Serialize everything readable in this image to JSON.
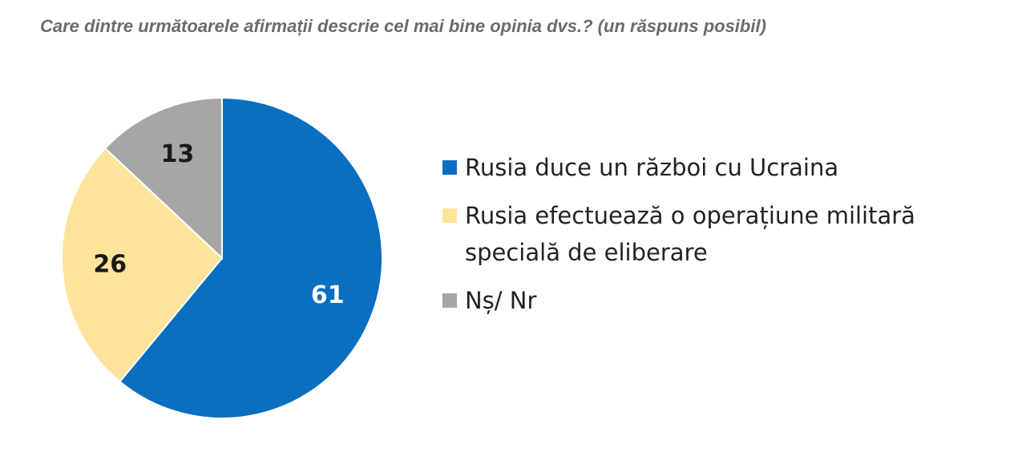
{
  "chart_data": {
    "type": "pie",
    "title": "Care dintre următoarele afirmații descrie cel mai bine opinia dvs.? (un răspuns posibil)",
    "categories": [
      "Rusia duce un război cu Ucraina",
      "Rusia efectuează o operațiune militară specială de eliberare",
      "Nș/ Nr"
    ],
    "values": [
      61,
      26,
      13
    ],
    "colors": [
      "#0a6ec1",
      "#fde49a",
      "#a6a6a6"
    ],
    "label_colors": [
      "#ffffff",
      "#1a1a1a",
      "#1a1a1a"
    ]
  }
}
